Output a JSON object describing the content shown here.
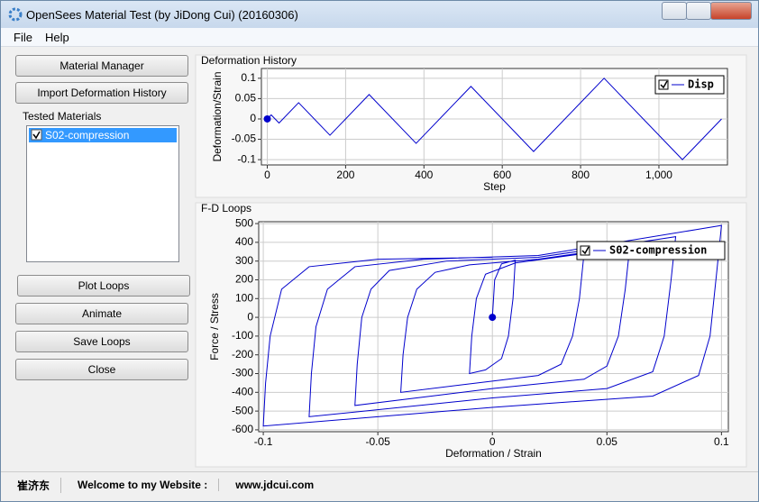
{
  "window": {
    "title": "OpenSees Material Test (by JiDong Cui) (20160306)"
  },
  "menu": [
    "File",
    "Help"
  ],
  "buttons": {
    "material_manager": "Material Manager",
    "import": "Import Deformation History",
    "plot": "Plot Loops",
    "animate": "Animate",
    "save": "Save Loops",
    "close": "Close"
  },
  "tested_materials": {
    "label": "Tested Materials",
    "items": [
      "S02-compression"
    ]
  },
  "status": [
    "崔济东",
    "Welcome to my Website :",
    "www.jdcui.com"
  ],
  "chart_data": [
    {
      "type": "line",
      "title": "Deformation History",
      "x_label": "Step",
      "y_label": "Deformation/Strain",
      "x": [
        0,
        10,
        30,
        80,
        160,
        260,
        380,
        520,
        680,
        860,
        1060,
        1160
      ],
      "series": [
        {
          "name": "Disp",
          "color": "#0000cc",
          "values": [
            0,
            0.01,
            -0.01,
            0.04,
            -0.04,
            0.06,
            -0.06,
            0.08,
            -0.08,
            0.1,
            -0.1,
            0
          ]
        }
      ],
      "xlim": [
        -15,
        1175
      ],
      "xticks": [
        0,
        200,
        400,
        600,
        800,
        {
          "value": 1000,
          "label": "1,000"
        }
      ],
      "ylim": [
        -0.113,
        0.124
      ],
      "yticks": [
        -0.1,
        -0.05,
        0,
        0.05,
        0.1
      ],
      "grid": true,
      "legend": "upper right"
    },
    {
      "type": "line",
      "title": "F-D Loops",
      "x_label": "Deformation / Strain",
      "y_label": "Force / Stress",
      "x": [
        0,
        0.001,
        0.004,
        0.01,
        0.009,
        0.007,
        0.004,
        -0.003,
        -0.01,
        -0.009,
        -0.007,
        -0.003,
        0.01,
        0.04,
        0.038,
        0.035,
        0.03,
        0.02,
        0,
        -0.04,
        -0.039,
        -0.037,
        -0.033,
        -0.025,
        -0.01,
        0.02,
        0.06,
        0.058,
        0.055,
        0.05,
        0.04,
        0,
        -0.06,
        -0.059,
        -0.057,
        -0.053,
        -0.045,
        -0.02,
        0.02,
        0.08,
        0.078,
        0.075,
        0.07,
        0.05,
        0,
        -0.08,
        -0.079,
        -0.077,
        -0.072,
        -0.06,
        -0.03,
        0.02,
        0.1,
        0.098,
        0.095,
        0.09,
        0.07,
        0,
        -0.1,
        -0.099,
        -0.097,
        -0.092,
        -0.08,
        -0.05,
        0
      ],
      "series": [
        {
          "name": "S02-compression",
          "color": "#0000cc",
          "values": [
            0,
            200,
            285,
            305,
            100,
            -100,
            -220,
            -280,
            -300,
            -100,
            100,
            230,
            290,
            340,
            100,
            -100,
            -250,
            -310,
            -340,
            -400,
            -200,
            0,
            150,
            240,
            280,
            310,
            380,
            150,
            -100,
            -260,
            -330,
            -380,
            -470,
            -250,
            0,
            150,
            250,
            300,
            320,
            430,
            200,
            -100,
            -290,
            -380,
            -430,
            -530,
            -300,
            -50,
            150,
            270,
            310,
            330,
            490,
            250,
            -100,
            -310,
            -420,
            -480,
            -580,
            -350,
            -100,
            150,
            270,
            310,
            320
          ]
        }
      ],
      "xlim": [
        -0.102,
        0.103
      ],
      "xticks": [
        -0.1,
        -0.05,
        0,
        0.05,
        0.1
      ],
      "ylim": [
        -610,
        510
      ],
      "yticks": [
        -600,
        -500,
        -400,
        -300,
        -200,
        -100,
        0,
        100,
        200,
        300,
        400,
        500
      ],
      "grid": true,
      "legend": "upper right"
    }
  ]
}
